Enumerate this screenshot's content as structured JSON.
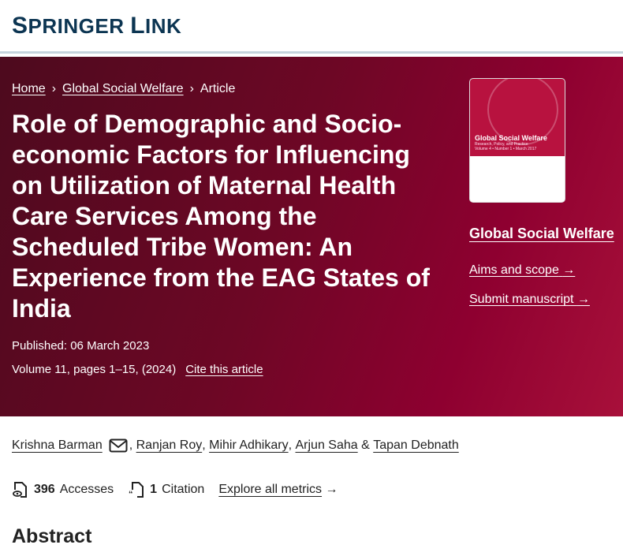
{
  "header": {
    "logo": "Springer Link"
  },
  "breadcrumb": [
    {
      "label": "Home"
    },
    {
      "label": "Global Social Welfare"
    },
    {
      "label": "Article"
    }
  ],
  "article": {
    "title": "Role of Demographic and Socio-economic Factors for Influencing on Utilization of Maternal Health Care Services Among the Scheduled Tribe Women: An Experience from the EAG States of India",
    "published": "Published: 06 March 2023",
    "volume": "Volume 11, pages 1–15, (2024)",
    "cite_label": "Cite this article"
  },
  "sidebar": {
    "cover": {
      "title": "Global Social Welfare",
      "subtitle": "Research, Policy, and Practice",
      "issue": "Volume 4 • Number 1 • March 2017"
    },
    "journal_link": "Global Social Welfare",
    "aims_label": "Aims and scope",
    "submit_label": "Submit manuscript"
  },
  "authors": [
    "Krishna Barman",
    "Ranjan Roy",
    "Mihir Adhikary",
    "Arjun Saha",
    "Tapan Debnath"
  ],
  "metrics": {
    "accesses_count": "396",
    "accesses_label": "Accesses",
    "citations_count": "1",
    "citations_label": "Citation",
    "explore_label": "Explore all metrics"
  },
  "abstract_heading": "Abstract",
  "colors": {
    "brand": "#0c3552",
    "banner": "#6d0725"
  }
}
